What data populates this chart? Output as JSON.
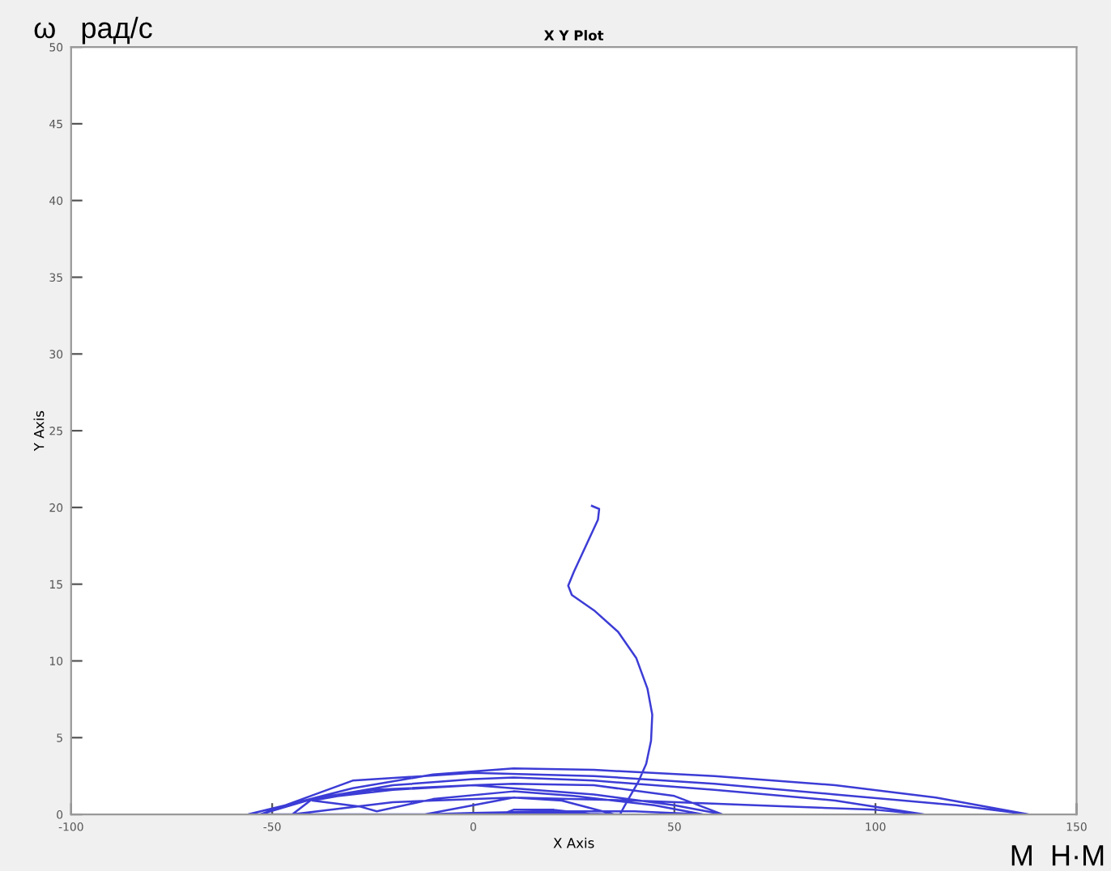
{
  "chart_data": {
    "type": "line",
    "title": "X Y Plot",
    "xlabel": "X Axis",
    "ylabel": "Y Axis",
    "annotations": [
      "ω   рад/с",
      "М  Н·М"
    ],
    "xlim": [
      -100,
      150
    ],
    "ylim": [
      0,
      50
    ],
    "xticks": [
      -100,
      -50,
      0,
      50,
      100,
      150
    ],
    "yticks": [
      0,
      5,
      10,
      15,
      20,
      25,
      30,
      35,
      40,
      45,
      50
    ],
    "grid": false,
    "marker": "none",
    "line_style": "solid",
    "series": [
      {
        "color": "#3c3cd6",
        "x": [
          29.5,
          31.3,
          31,
          28,
          25,
          23.6,
          24.5,
          30,
          36,
          40.5,
          43.3,
          44.5,
          44.2,
          43,
          41,
          39,
          37.5,
          36.5,
          20,
          0,
          -20,
          -40,
          -56,
          -45,
          -30,
          -10,
          10,
          30,
          60,
          90,
          115,
          138,
          120,
          90,
          60,
          30,
          0,
          -30,
          -53,
          -40,
          -20,
          0,
          10,
          30,
          60,
          90,
          112,
          100,
          70,
          40,
          10,
          -20,
          -45,
          -40,
          -20,
          0,
          10,
          30,
          50,
          62,
          50,
          30,
          0,
          -25,
          -40,
          -28,
          -24,
          -10,
          10,
          25,
          45,
          57,
          40,
          20,
          0,
          -12,
          0,
          10,
          22,
          35,
          20,
          8,
          10,
          20,
          30,
          20,
          8
        ],
        "values": [
          20.1,
          19.9,
          19.2,
          17.5,
          15.8,
          14.9,
          14.3,
          13.3,
          11.9,
          10.2,
          8.2,
          6.5,
          4.8,
          3.3,
          2.1,
          1.2,
          0.5,
          0,
          0,
          0,
          0,
          0,
          0,
          0.7,
          1.7,
          2.6,
          3.0,
          2.9,
          2.5,
          1.9,
          1.1,
          0,
          0.6,
          1.3,
          2.0,
          2.5,
          2.7,
          2.2,
          0,
          1.0,
          1.9,
          2.3,
          2.4,
          2.2,
          1.6,
          0.9,
          0,
          0.3,
          0.6,
          0.9,
          1.1,
          0.8,
          0,
          1.0,
          1.6,
          1.9,
          2.0,
          1.9,
          1.2,
          0,
          0.6,
          1.3,
          1.9,
          1.6,
          0.9,
          0.5,
          0.2,
          1.0,
          1.5,
          1.2,
          0.6,
          0,
          0.2,
          0.2,
          0.1,
          0,
          0.6,
          1.1,
          0.9,
          0,
          0.1,
          0.1,
          0.3,
          0.3,
          0,
          0,
          0
        ]
      }
    ]
  }
}
